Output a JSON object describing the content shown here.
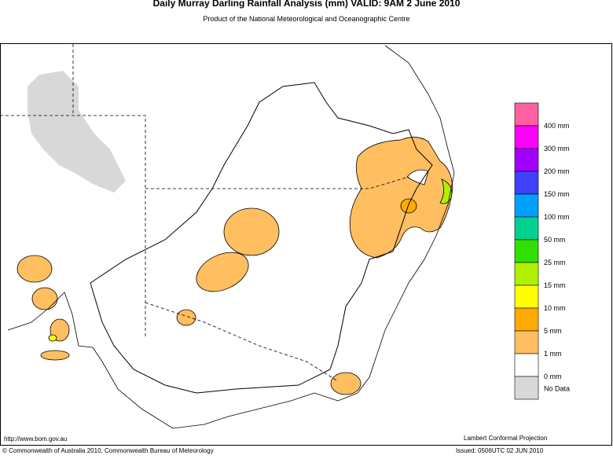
{
  "header": {
    "title": "Daily Murray Darling Rainfall Analysis (mm)  VALID: 9AM  2 June 2010",
    "subtitle": "Product of the National Meteorological and Oceanographic Centre"
  },
  "legend": {
    "colors": [
      "#ff5fa0",
      "#ff00ff",
      "#a000ff",
      "#4040ff",
      "#00a0ff",
      "#00d090",
      "#30e000",
      "#b0f000",
      "#ffff00",
      "#ffaa00",
      "#ffbe60",
      "#ffffff",
      "#d8d8d8"
    ],
    "labels": [
      "400 mm",
      "300 mm",
      "200 mm",
      "150 mm",
      "100 mm",
      "50 mm",
      "25 mm",
      "15 mm",
      "10 mm",
      "5 mm",
      "1 mm",
      "0 mm",
      "No Data"
    ]
  },
  "footer": {
    "url": "http://www.bom.gov.au",
    "projection": "Lambert Conformal Projection",
    "copyright": "© Commonwealth of Australia 2010, Commonwealth Bureau of Meteorology",
    "issued": "Issued: 0506UTC 02 JUN 2010"
  }
}
